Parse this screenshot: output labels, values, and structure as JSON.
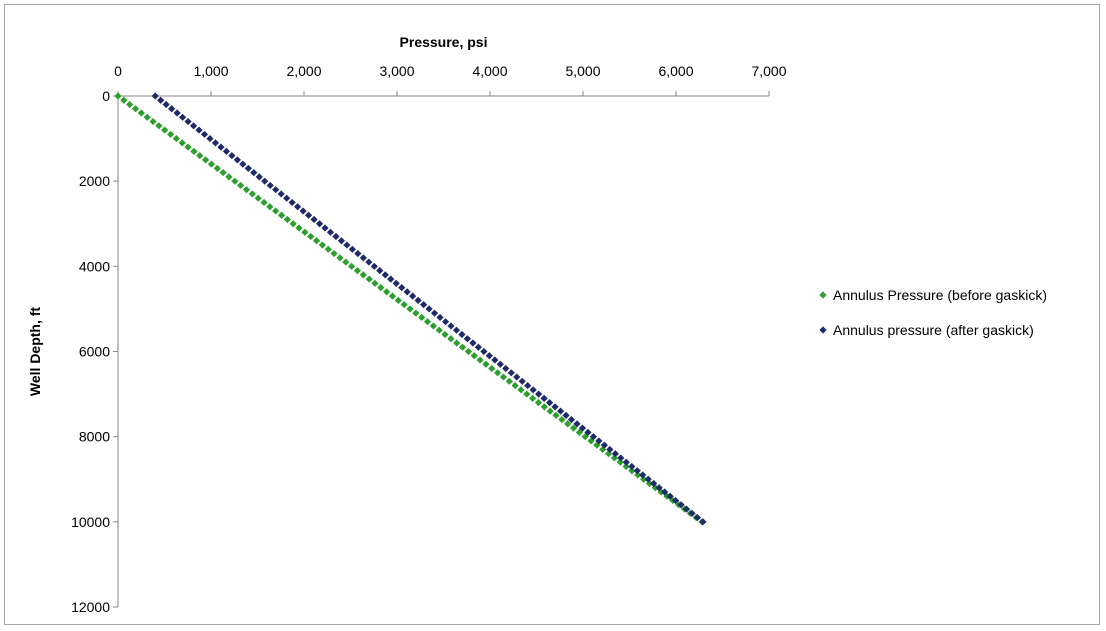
{
  "chart_data": {
    "type": "scatter",
    "title": "",
    "xlabel": "Pressure, psi",
    "ylabel": "Well Depth, ft",
    "xlim": [
      0,
      7000
    ],
    "ylim": [
      0,
      12000
    ],
    "y_inverted": true,
    "x_axis_position": "top",
    "x_ticks": [
      0,
      1000,
      2000,
      3000,
      4000,
      5000,
      6000,
      7000
    ],
    "x_tick_labels": [
      "0",
      "1,000",
      "2,000",
      "3,000",
      "4,000",
      "5,000",
      "6,000",
      "7,000"
    ],
    "y_ticks": [
      0,
      2000,
      4000,
      6000,
      8000,
      10000,
      12000
    ],
    "y_tick_labels": [
      "0",
      "2000",
      "4000",
      "6000",
      "8000",
      "10000",
      "12000"
    ],
    "grid": false,
    "legend_position": "right",
    "series": [
      {
        "name": "Annulus Pressure (before gaskick)",
        "color": "#2ca02c",
        "marker": "diamond",
        "x_start": 0,
        "x_end": 6280,
        "depth_start": 0,
        "depth_end": 10000,
        "depth_step": 100
      },
      {
        "name": "Annulus pressure (after gaskick)",
        "color": "#1f2a6b",
        "marker": "diamond",
        "x_start": 400,
        "x_end": 6290,
        "depth_start": 0,
        "depth_end": 10000,
        "depth_step": 100
      }
    ]
  }
}
